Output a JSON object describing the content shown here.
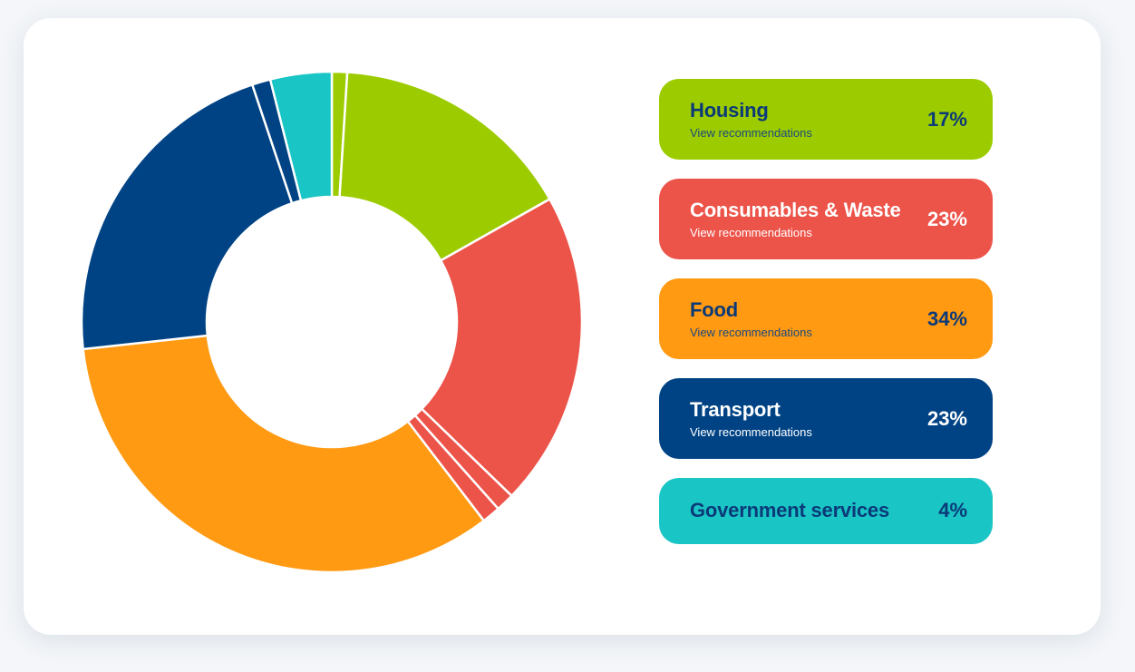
{
  "chart_data": {
    "type": "pie",
    "donut": true,
    "categories": [
      "Housing",
      "Consumables & Waste",
      "Food",
      "Transport",
      "Government services"
    ],
    "values": [
      17,
      23,
      34,
      23,
      4
    ],
    "title": "",
    "xlabel": "",
    "ylabel": "",
    "legend": "right"
  },
  "segments": [
    {
      "category": "Housing",
      "value": 1,
      "color": "#9ccc00"
    },
    {
      "category": "Housing",
      "value": 16,
      "color": "#9ccc00"
    },
    {
      "category": "Consumables & Waste",
      "value": 20.6,
      "color": "#ec5349"
    },
    {
      "category": "Consumables & Waste",
      "value": 1.2,
      "color": "#ec5349"
    },
    {
      "category": "Consumables & Waste",
      "value": 1.2,
      "color": "#ec5349"
    },
    {
      "category": "Food",
      "value": 34,
      "color": "#ff9a12"
    },
    {
      "category": "Transport",
      "value": 21.8,
      "color": "#004385"
    },
    {
      "category": "Transport",
      "value": 1.2,
      "color": "#004385"
    },
    {
      "category": "Government services",
      "value": 4,
      "color": "#1ac5c5"
    }
  ],
  "legend": [
    {
      "label": "Housing",
      "link": "View recommendations",
      "pct": "17%",
      "bg": "#9ccc00",
      "text_color": "#0b3a78",
      "link_color": "#1d4a7e"
    },
    {
      "label": "Consumables & Waste",
      "link": "View recommendations",
      "pct": "23%",
      "bg": "#ec5349",
      "text_color": "#ffffff",
      "link_color": "#ffffff"
    },
    {
      "label": "Food",
      "link": "View recommendations",
      "pct": "34%",
      "bg": "#ff9a12",
      "text_color": "#0b3a78",
      "link_color": "#1d4a7e"
    },
    {
      "label": "Transport",
      "link": "View recommendations",
      "pct": "23%",
      "bg": "#004385",
      "text_color": "#ffffff",
      "link_color": "#ffffff"
    },
    {
      "label": "Government services",
      "link": "",
      "pct": "4%",
      "bg": "#1ac5c5",
      "text_color": "#0b3a78",
      "link_color": "#0b3a78"
    }
  ]
}
